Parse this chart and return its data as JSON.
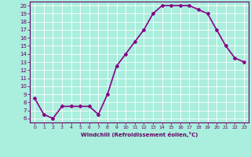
{
  "x": [
    0,
    1,
    2,
    3,
    4,
    5,
    6,
    7,
    8,
    9,
    10,
    11,
    12,
    13,
    14,
    15,
    16,
    17,
    18,
    19,
    20,
    21,
    22,
    23
  ],
  "y": [
    8.5,
    6.5,
    6.0,
    7.5,
    7.5,
    7.5,
    7.5,
    6.5,
    9.0,
    12.5,
    14.0,
    15.5,
    17.0,
    19.0,
    20.0,
    20.0,
    20.0,
    20.0,
    19.5,
    19.0,
    17.0,
    15.0,
    13.5,
    13.0
  ],
  "line_color": "#880088",
  "marker": "D",
  "marker_size": 2.0,
  "xlim": [
    -0.5,
    23.5
  ],
  "ylim": [
    5.5,
    20.5
  ],
  "yticks": [
    6,
    7,
    8,
    9,
    10,
    11,
    12,
    13,
    14,
    15,
    16,
    17,
    18,
    19,
    20
  ],
  "xticks": [
    0,
    1,
    2,
    3,
    4,
    5,
    6,
    7,
    8,
    9,
    10,
    11,
    12,
    13,
    14,
    15,
    16,
    17,
    18,
    19,
    20,
    21,
    22,
    23
  ],
  "xlabel": "Windchill (Refroidissement éolien,°C)",
  "background_color": "#aaeedd",
  "grid_color": "#ffffff",
  "tick_color": "#660066",
  "label_color": "#660066",
  "axis_bg": "#aaeedd",
  "linewidth": 1.2
}
